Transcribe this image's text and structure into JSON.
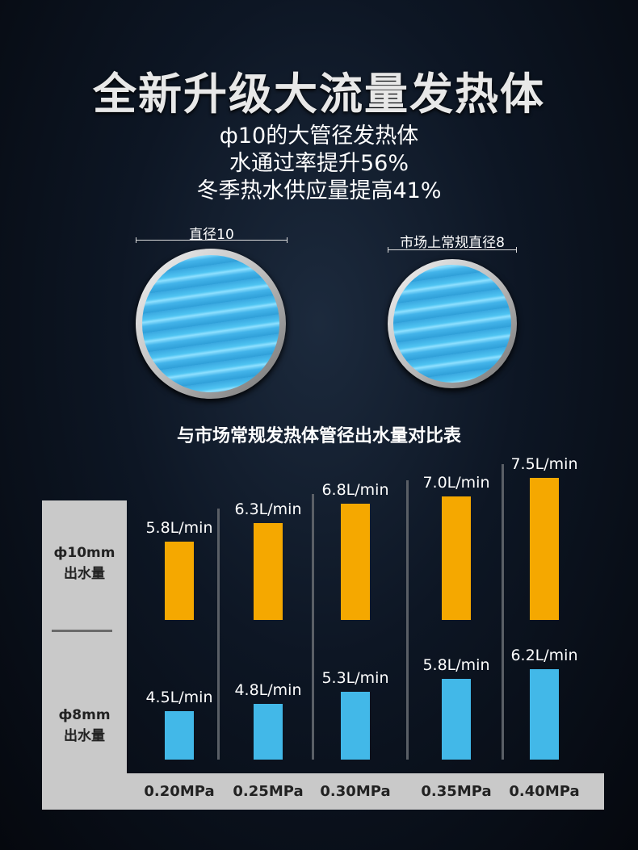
{
  "title": "全新升级大流量发热体",
  "subtitle_lines": [
    "ф10的大管径发热体",
    "水通过率提升56%",
    "冬季热水供应量提高41%"
  ],
  "diagram": {
    "large_label": "直径10",
    "small_label": "市场上常规直径8"
  },
  "chart_data": {
    "type": "bar",
    "title": "与市场常规发热体管径出水量对比表",
    "categories": [
      "0.20MPa",
      "0.25MPa",
      "0.30MPa",
      "0.35MPa",
      "0.40MPa"
    ],
    "unit": "L/min",
    "series": [
      {
        "name": "ф10mm 出水量",
        "name_lines": [
          "ф10mm",
          "出水量"
        ],
        "color": "#f5a800",
        "values": [
          5.8,
          6.3,
          6.8,
          7.0,
          7.5
        ],
        "labels": [
          "5.8L/min",
          "6.3L/min",
          "6.8L/min",
          "7.0L/min",
          "7.5L/min"
        ]
      },
      {
        "name": "ф8mm 出水量",
        "name_lines": [
          "ф8mm",
          "出水量"
        ],
        "color": "#42b8e8",
        "values": [
          4.5,
          4.8,
          5.3,
          5.8,
          6.2
        ],
        "labels": [
          "4.5L/min",
          "4.8L/min",
          "5.3L/min",
          "5.8L/min",
          "6.2L/min"
        ]
      }
    ]
  }
}
